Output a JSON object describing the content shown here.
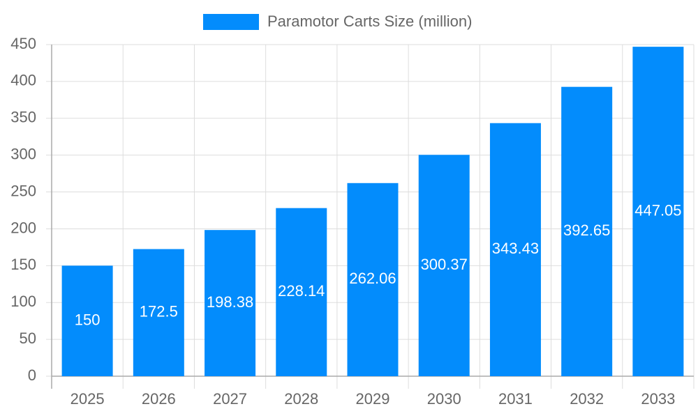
{
  "chart_data": {
    "type": "bar",
    "categories": [
      "2025",
      "2026",
      "2027",
      "2028",
      "2029",
      "2030",
      "2031",
      "2032",
      "2033"
    ],
    "series": [
      {
        "name": "Paramotor Carts Size (million)",
        "color": "#038cfc",
        "values": [
          150,
          172.5,
          198.38,
          228.14,
          262.06,
          300.37,
          343.43,
          392.65,
          447.05
        ]
      }
    ],
    "ylim": [
      0,
      450
    ],
    "yticks": [
      0,
      50,
      100,
      150,
      200,
      250,
      300,
      350,
      400,
      450
    ],
    "grid": true,
    "legend": "top"
  }
}
